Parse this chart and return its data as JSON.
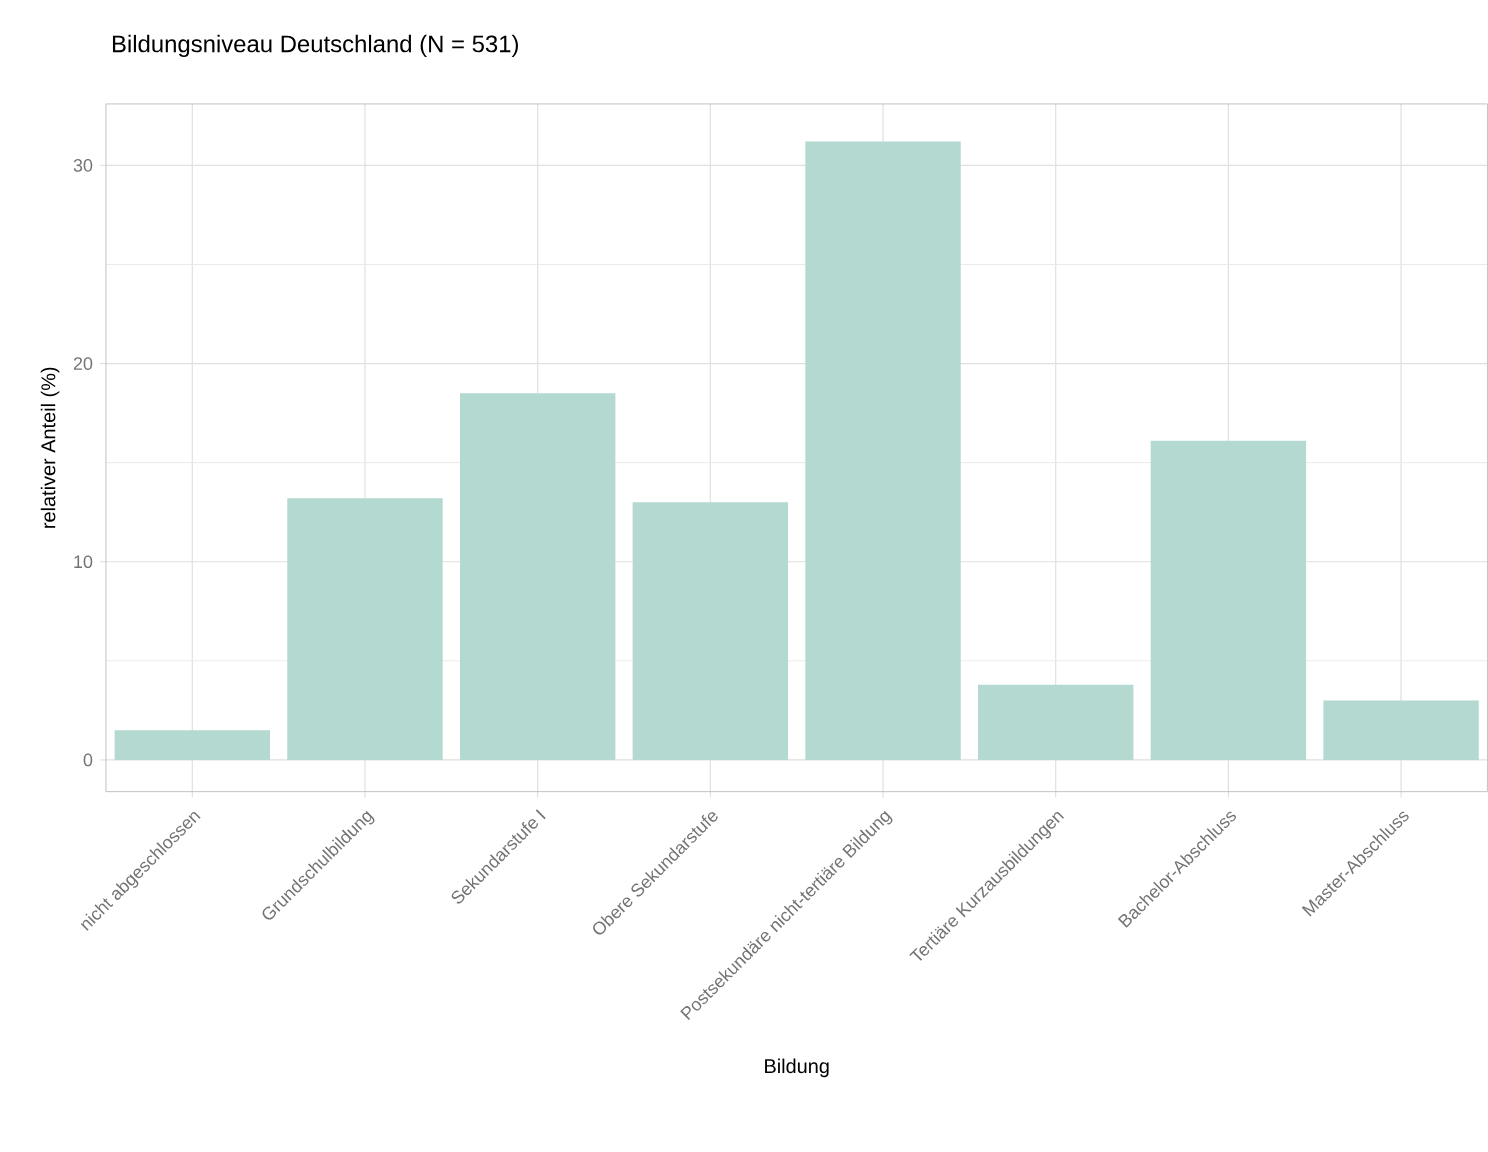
{
  "chart_data": {
    "type": "bar",
    "title": "Bildungsniveau Deutschland (N = 531)",
    "xlabel": "Bildung",
    "ylabel": "relativer Anteil (%)",
    "categories": [
      "nicht abgeschlossen",
      "Grundschulbildung",
      "Sekundarstufe I",
      "Obere Sekundarstufe",
      "Postsekundäre nicht-tertiäre Bildung",
      "Tertiäre Kurzausbildungen",
      "Bachelor-Abschluss",
      "Master-Abschluss"
    ],
    "values": [
      1.5,
      13.2,
      18.5,
      13.0,
      31.2,
      3.8,
      16.1,
      3.0
    ],
    "color": "#b3d9d1",
    "ylim": [
      -1.6,
      33.1
    ],
    "yticks": [
      0,
      10,
      20,
      30
    ],
    "grid": true
  }
}
